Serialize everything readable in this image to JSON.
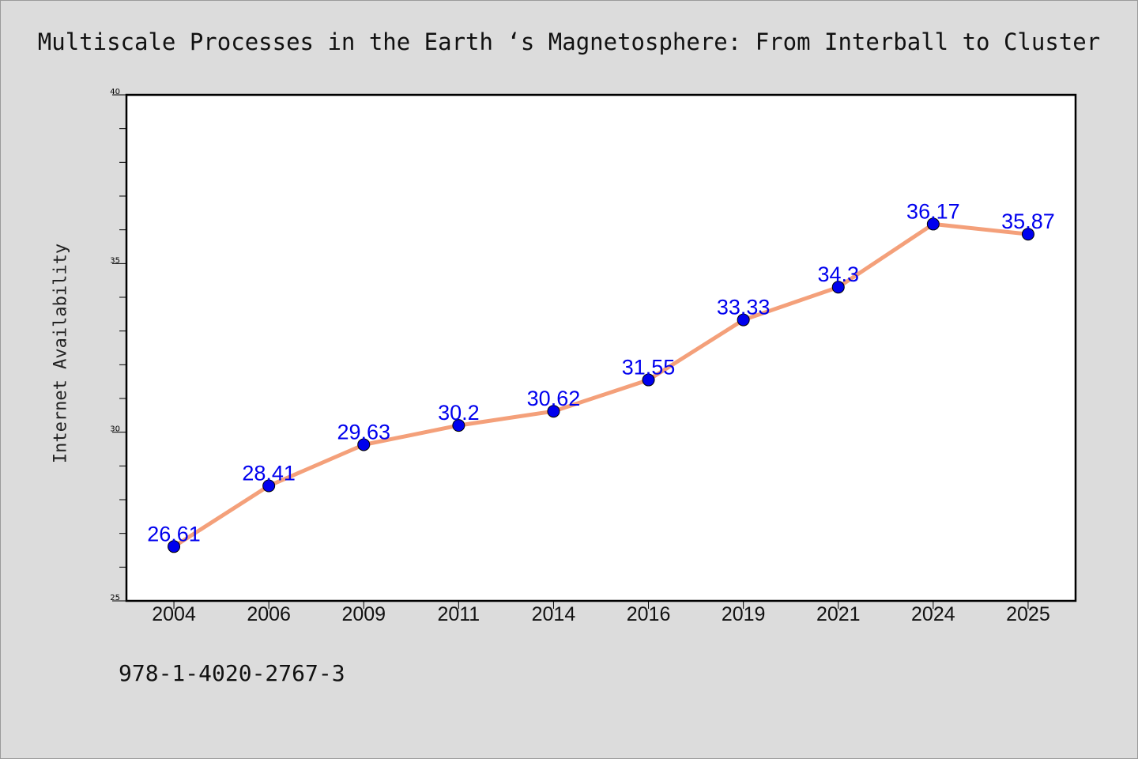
{
  "page": {
    "footnote": "978-1-4020-2767-3"
  },
  "colors": {
    "background": "#dcdcdc",
    "plot_background": "#ffffff",
    "line": "#f4a07a",
    "marker": "#0000ee",
    "data_label": "#0000ee"
  },
  "chart_data": {
    "type": "line",
    "title": "Multiscale Processes in the Earth ‘s Magnetosphere: From Interball to Cluster",
    "xlabel": "",
    "ylabel": "Internet Availability",
    "ylim": [
      25,
      40
    ],
    "yticks": [
      25,
      30,
      35,
      40
    ],
    "grid": false,
    "legend": "none",
    "categories": [
      "2004",
      "2006",
      "2009",
      "2011",
      "2014",
      "2016",
      "2019",
      "2021",
      "2024",
      "2025"
    ],
    "series": [
      {
        "values": [
          26.61,
          28.41,
          29.63,
          30.2,
          30.62,
          31.55,
          33.33,
          34.3,
          36.17,
          35.87
        ],
        "labels": [
          "26.61",
          "28.41",
          "29.63",
          "30.2",
          "30.62",
          "31.55",
          "33.33",
          "34.3",
          "36.17",
          "35.87"
        ]
      }
    ]
  }
}
